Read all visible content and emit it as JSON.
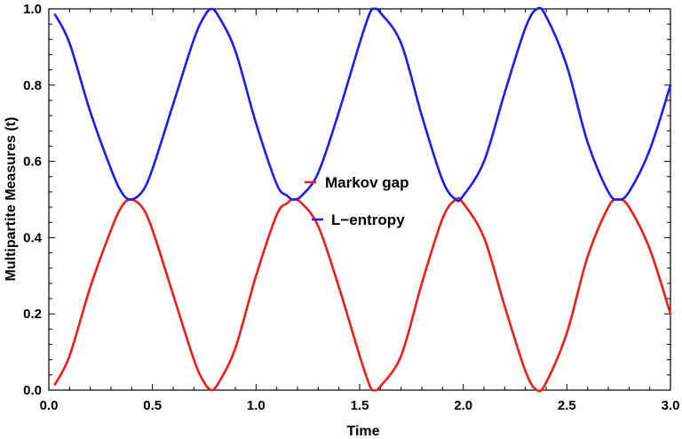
{
  "chart_data": {
    "type": "line",
    "title": "",
    "xlabel": "Time",
    "ylabel": "Multipartite Measures (t)",
    "xlim": [
      0.0,
      3.0
    ],
    "ylim": [
      0.0,
      1.0
    ],
    "x_ticks": [
      "0.0",
      "0.5",
      "1.0",
      "1.5",
      "2.0",
      "2.5",
      "3.0"
    ],
    "y_ticks": [
      "0.0",
      "0.2",
      "0.4",
      "0.6",
      "0.8",
      "1.0"
    ],
    "grid": false,
    "legend_placement": "center",
    "series": [
      {
        "name": "Markov gap",
        "color": "#ee1c1c",
        "x": [
          0.03,
          0.1,
          0.2,
          0.3,
          0.35,
          0.393,
          0.45,
          0.5,
          0.6,
          0.7,
          0.75,
          0.785,
          0.82,
          0.9,
          1.0,
          1.1,
          1.15,
          1.178,
          1.22,
          1.3,
          1.4,
          1.5,
          1.55,
          1.571,
          1.6,
          1.7,
          1.8,
          1.9,
          1.964,
          2.0,
          2.1,
          2.2,
          2.3,
          2.356,
          2.4,
          2.5,
          2.6,
          2.7,
          2.749,
          2.8,
          2.9,
          3.0
        ],
        "y": [
          0.015,
          0.09,
          0.27,
          0.42,
          0.48,
          0.5,
          0.48,
          0.42,
          0.25,
          0.08,
          0.02,
          0.0,
          0.02,
          0.11,
          0.3,
          0.46,
          0.49,
          0.5,
          0.49,
          0.43,
          0.27,
          0.09,
          0.01,
          0.0,
          0.01,
          0.09,
          0.28,
          0.45,
          0.5,
          0.49,
          0.4,
          0.22,
          0.05,
          0.0,
          0.02,
          0.15,
          0.35,
          0.48,
          0.5,
          0.48,
          0.37,
          0.2
        ]
      },
      {
        "name": "L−entropy",
        "color": "#1c1cee",
        "x": [
          0.03,
          0.1,
          0.2,
          0.3,
          0.35,
          0.393,
          0.45,
          0.5,
          0.6,
          0.7,
          0.75,
          0.785,
          0.82,
          0.9,
          1.0,
          1.1,
          1.15,
          1.178,
          1.22,
          1.3,
          1.4,
          1.5,
          1.55,
          1.571,
          1.6,
          1.7,
          1.8,
          1.9,
          1.964,
          2.0,
          2.1,
          2.2,
          2.3,
          2.356,
          2.4,
          2.5,
          2.6,
          2.7,
          2.749,
          2.8,
          2.9,
          3.0
        ],
        "y": [
          0.985,
          0.91,
          0.73,
          0.58,
          0.52,
          0.5,
          0.52,
          0.58,
          0.75,
          0.92,
          0.98,
          1.0,
          0.98,
          0.89,
          0.7,
          0.54,
          0.51,
          0.5,
          0.51,
          0.57,
          0.73,
          0.91,
          0.99,
          1.0,
          0.99,
          0.91,
          0.72,
          0.55,
          0.5,
          0.51,
          0.6,
          0.78,
          0.95,
          1.0,
          0.98,
          0.85,
          0.65,
          0.52,
          0.5,
          0.52,
          0.63,
          0.8
        ]
      }
    ]
  }
}
